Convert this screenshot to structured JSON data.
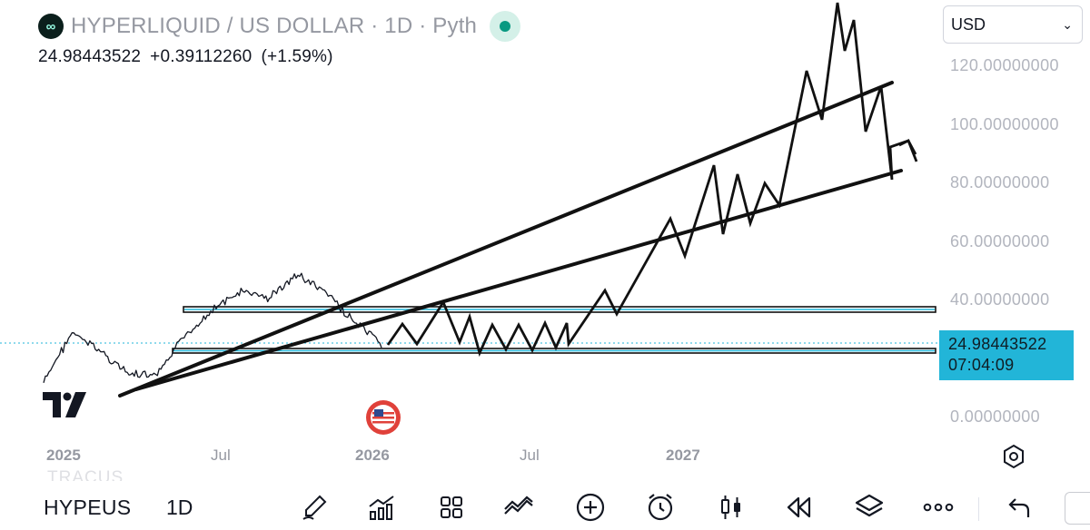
{
  "header": {
    "logo_glyph": "∞",
    "title": "HYPERLIQUID / US DOLLAR · 1D · Pyth",
    "status_color": "#089981",
    "last_price": "24.98443522",
    "change": "+0.39112260",
    "change_pct": "(+1.59%)"
  },
  "currency": {
    "value": "USD",
    "chevron": "⌄"
  },
  "price_scale": {
    "ticks": [
      "120.00000000",
      "100.00000000",
      "80.00000000",
      "60.00000000",
      "40.00000000",
      "0.00000000"
    ],
    "current_price": "24.98443522",
    "countdown": "07:04:09",
    "label_color": "#22b5d8"
  },
  "time_scale": {
    "ticks": [
      "2025",
      "Jul",
      "2026",
      "Jul",
      "2027"
    ]
  },
  "chart_data": {
    "type": "line",
    "title": "HYPERLIQUID / US DOLLAR",
    "xlabel": "",
    "ylabel": "",
    "ylim": [
      0,
      130
    ],
    "series": [
      {
        "name": "HYPERLIQUID / US DOLLAR",
        "x": [
          "2024-12",
          "2025-01",
          "2025-02",
          "2025-03",
          "2025-04",
          "2025-05",
          "2025-06",
          "2025-07",
          "2025-08",
          "2025-09",
          "2025-10",
          "2025-11",
          "2025-12"
        ],
        "values": [
          11,
          28,
          22,
          14,
          13,
          27,
          36,
          42,
          40,
          48,
          42,
          32,
          24
        ]
      }
    ],
    "annotations": [
      "trend line",
      "trend line",
      "horizontal band ~36",
      "horizontal band ~22",
      "projected path"
    ]
  },
  "toolbar": {
    "symbol": "HYPEUS",
    "interval": "1D",
    "ghost_text": "TRACUS"
  },
  "icons": [
    "brush-icon",
    "indicators-icon",
    "layouts-icon",
    "compare-icon",
    "add-icon",
    "alert-icon",
    "candles-icon",
    "replay-icon",
    "layers-icon",
    "more-icon",
    "undo-icon",
    "settings-icon"
  ]
}
